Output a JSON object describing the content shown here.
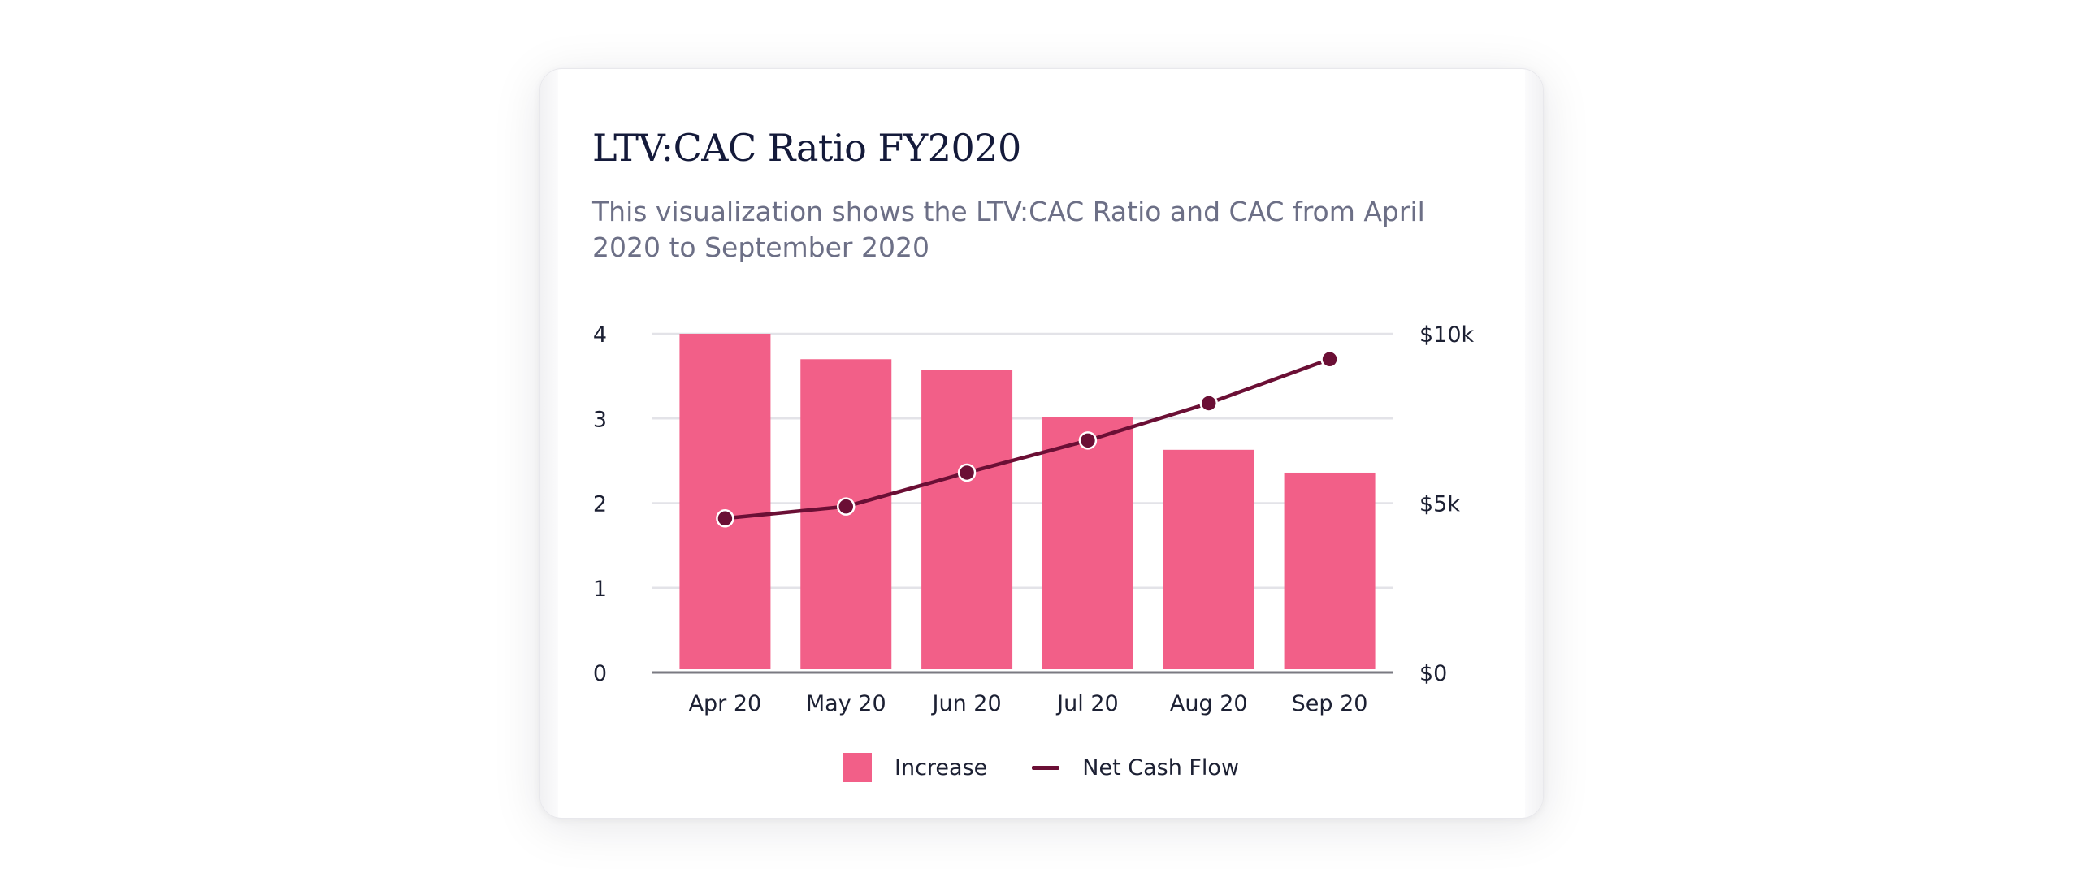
{
  "card": {
    "title": "LTV:CAC Ratio FY2020",
    "subtitle": "This visualization shows the LTV:CAC Ratio and CAC from April 2020 to September 2020"
  },
  "colors": {
    "bar": "#f25f88",
    "line": "#6b0f35",
    "grid": "#e3e3e8",
    "axis": "#7a7a82"
  },
  "chart_data": {
    "type": "bar",
    "categories": [
      "Apr 20",
      "May 20",
      "Jun 20",
      "Jul 20",
      "Aug 20",
      "Sep 20"
    ],
    "series": [
      {
        "name": "Increase",
        "type": "bar",
        "axis": "left",
        "values": [
          4.0,
          3.7,
          3.57,
          3.02,
          2.63,
          2.36
        ]
      },
      {
        "name": "Net Cash Flow",
        "type": "line",
        "axis": "right",
        "values": [
          4550,
          4900,
          5900,
          6850,
          7950,
          9250
        ]
      }
    ],
    "y_left": {
      "ticks": [
        "0",
        "1",
        "2",
        "3",
        "4"
      ],
      "lim": [
        0,
        4
      ]
    },
    "y_right": {
      "ticks": [
        "$0",
        "$5k",
        "$10k"
      ],
      "lim": [
        0,
        10000
      ]
    },
    "grid": true,
    "legend": "bottom-center"
  }
}
